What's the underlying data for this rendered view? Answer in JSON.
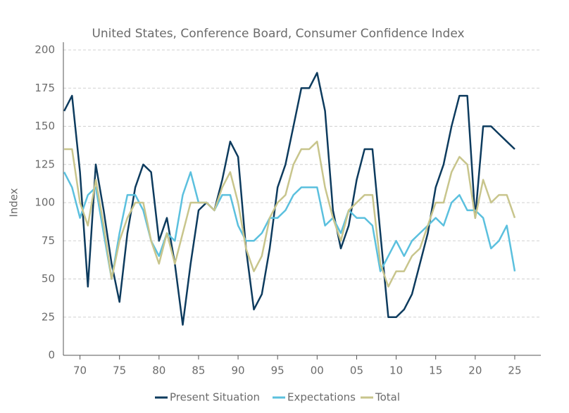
{
  "chart_data": {
    "type": "line",
    "title": "United States, Conference Board, Consumer Confidence Index",
    "y_label": "Index",
    "x": [
      1968,
      1969,
      1970,
      1971,
      1972,
      1973,
      1974,
      1975,
      1976,
      1977,
      1978,
      1979,
      1980,
      1981,
      1982,
      1983,
      1984,
      1985,
      1986,
      1987,
      1988,
      1989,
      1990,
      1991,
      1992,
      1993,
      1994,
      1995,
      1996,
      1997,
      1998,
      1999,
      2000,
      2001,
      2002,
      2003,
      2004,
      2005,
      2006,
      2007,
      2008,
      2009,
      2010,
      2011,
      2012,
      2013,
      2014,
      2015,
      2016,
      2017,
      2018,
      2019,
      2020,
      2021,
      2022,
      2023,
      2024,
      2025
    ],
    "series": [
      {
        "name": "Present Situation",
        "color": "#0d3b5e",
        "values": [
          160,
          170,
          120,
          45,
          125,
          95,
          60,
          35,
          80,
          110,
          125,
          120,
          75,
          90,
          60,
          20,
          60,
          95,
          100,
          95,
          115,
          140,
          130,
          70,
          30,
          40,
          70,
          110,
          125,
          150,
          175,
          175,
          185,
          160,
          95,
          70,
          85,
          115,
          135,
          135,
          80,
          25,
          25,
          30,
          40,
          60,
          80,
          110,
          125,
          150,
          170,
          170,
          90,
          150,
          150,
          145,
          140,
          135
        ]
      },
      {
        "name": "Expectations",
        "color": "#5bc0de",
        "values": [
          120,
          110,
          90,
          105,
          110,
          80,
          50,
          80,
          105,
          105,
          95,
          75,
          65,
          80,
          75,
          105,
          120,
          100,
          100,
          95,
          105,
          105,
          85,
          75,
          75,
          80,
          90,
          90,
          95,
          105,
          110,
          110,
          110,
          85,
          90,
          80,
          95,
          90,
          90,
          85,
          55,
          65,
          75,
          65,
          75,
          80,
          85,
          90,
          85,
          100,
          105,
          95,
          95,
          90,
          70,
          75,
          85,
          55
        ]
      },
      {
        "name": "Total",
        "color": "#c8c58c",
        "values": [
          135,
          135,
          100,
          85,
          115,
          85,
          50,
          75,
          90,
          100,
          100,
          75,
          60,
          80,
          60,
          80,
          100,
          100,
          100,
          95,
          110,
          120,
          100,
          70,
          55,
          65,
          90,
          100,
          105,
          125,
          135,
          135,
          140,
          110,
          90,
          75,
          95,
          100,
          105,
          105,
          60,
          45,
          55,
          55,
          65,
          70,
          85,
          100,
          100,
          120,
          130,
          125,
          90,
          115,
          100,
          105,
          105,
          90
        ]
      }
    ],
    "xlim": [
      1967.9,
      2028.3
    ],
    "xticks": [
      {
        "value": 1970,
        "label": "70"
      },
      {
        "value": 1975,
        "label": "75"
      },
      {
        "value": 1980,
        "label": "80"
      },
      {
        "value": 1985,
        "label": "85"
      },
      {
        "value": 1990,
        "label": "90"
      },
      {
        "value": 1995,
        "label": "95"
      },
      {
        "value": 2000,
        "label": "00"
      },
      {
        "value": 2005,
        "label": "05"
      },
      {
        "value": 2010,
        "label": "10"
      },
      {
        "value": 2015,
        "label": "15"
      },
      {
        "value": 2020,
        "label": "20"
      },
      {
        "value": 2025,
        "label": "25"
      }
    ],
    "ylim": [
      0,
      200
    ],
    "yticks": [
      0,
      25,
      50,
      75,
      100,
      125,
      150,
      175,
      200
    ],
    "grid": true,
    "legend": "bottom"
  }
}
